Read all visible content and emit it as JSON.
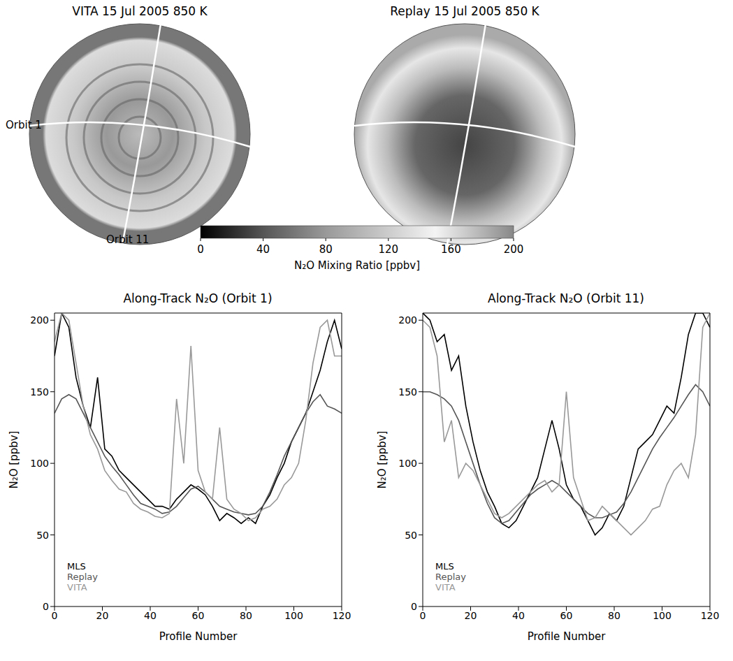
{
  "maps": [
    {
      "title": "VITA 15 Jul 2005 850 K",
      "labels": [
        "Orbit 1",
        "Orbit 11"
      ]
    },
    {
      "title": "Replay 15 Jul 2005 850 K"
    }
  ],
  "colorbar": {
    "label": "N₂O Mixing Ratio [ppbv]",
    "range": [
      0,
      200
    ],
    "ticks": [
      0,
      40,
      80,
      120,
      160,
      200
    ]
  },
  "chart_data": [
    {
      "type": "line",
      "title": "Along-Track N₂O (Orbit 1)",
      "x_label": "Profile Number",
      "y_label": "N₂O [ppbv]",
      "x": [
        0,
        3,
        6,
        9,
        12,
        15,
        18,
        21,
        24,
        27,
        30,
        33,
        36,
        39,
        42,
        45,
        48,
        51,
        54,
        57,
        60,
        63,
        66,
        69,
        72,
        75,
        78,
        81,
        84,
        87,
        90,
        93,
        96,
        99,
        102,
        105,
        108,
        111,
        114,
        117,
        120
      ],
      "xlim": [
        0,
        120
      ],
      "xticks": [
        0,
        20,
        40,
        60,
        80,
        100,
        120
      ],
      "ylim": [
        0,
        205
      ],
      "yticks": [
        0,
        50,
        100,
        150,
        200
      ],
      "legend": "lower left",
      "series": [
        {
          "name": "MLS",
          "color": "#000000",
          "values": [
            175,
            205,
            195,
            160,
            140,
            125,
            160,
            110,
            105,
            95,
            90,
            85,
            80,
            75,
            70,
            70,
            68,
            75,
            80,
            85,
            82,
            78,
            70,
            60,
            65,
            62,
            58,
            62,
            58,
            70,
            78,
            90,
            100,
            115,
            125,
            135,
            150,
            165,
            185,
            200,
            180
          ]
        },
        {
          "name": "Replay",
          "color": "#555555",
          "values": [
            135,
            145,
            148,
            145,
            135,
            125,
            115,
            105,
            98,
            92,
            85,
            78,
            72,
            70,
            68,
            65,
            66,
            70,
            76,
            82,
            84,
            80,
            75,
            70,
            68,
            66,
            65,
            64,
            65,
            70,
            80,
            92,
            105,
            115,
            125,
            135,
            143,
            148,
            140,
            138,
            135
          ]
        },
        {
          "name": "VITA",
          "color": "#999999",
          "values": [
            185,
            205,
            200,
            170,
            140,
            120,
            110,
            95,
            88,
            82,
            80,
            72,
            68,
            66,
            63,
            62,
            65,
            145,
            100,
            182,
            95,
            80,
            75,
            125,
            75,
            68,
            65,
            60,
            62,
            68,
            70,
            75,
            85,
            90,
            100,
            130,
            170,
            195,
            200,
            175,
            175
          ]
        }
      ]
    },
    {
      "type": "line",
      "title": "Along-Track N₂O (Orbit 11)",
      "x_label": "Profile Number",
      "y_label": "N₂O [ppbv]",
      "x": [
        0,
        3,
        6,
        9,
        12,
        15,
        18,
        21,
        24,
        27,
        30,
        33,
        36,
        39,
        42,
        45,
        48,
        51,
        54,
        57,
        60,
        63,
        66,
        69,
        72,
        75,
        78,
        81,
        84,
        87,
        90,
        93,
        96,
        99,
        102,
        105,
        108,
        111,
        114,
        117,
        120
      ],
      "xlim": [
        0,
        120
      ],
      "xticks": [
        0,
        20,
        40,
        60,
        80,
        100,
        120
      ],
      "ylim": [
        0,
        205
      ],
      "yticks": [
        0,
        50,
        100,
        150,
        200
      ],
      "legend": "lower left",
      "series": [
        {
          "name": "MLS",
          "color": "#000000",
          "values": [
            205,
            200,
            185,
            190,
            165,
            175,
            140,
            115,
            95,
            80,
            70,
            58,
            55,
            60,
            70,
            80,
            90,
            110,
            130,
            110,
            85,
            75,
            70,
            60,
            50,
            55,
            65,
            60,
            70,
            90,
            110,
            115,
            120,
            130,
            140,
            135,
            160,
            190,
            205,
            205,
            195
          ]
        },
        {
          "name": "Replay",
          "color": "#555555",
          "values": [
            150,
            150,
            148,
            145,
            140,
            130,
            115,
            100,
            85,
            72,
            62,
            58,
            60,
            66,
            72,
            78,
            82,
            85,
            88,
            85,
            80,
            75,
            70,
            65,
            62,
            62,
            64,
            66,
            72,
            80,
            90,
            100,
            110,
            118,
            125,
            132,
            140,
            148,
            155,
            150,
            140
          ]
        },
        {
          "name": "VITA",
          "color": "#999999",
          "values": [
            200,
            195,
            175,
            115,
            130,
            90,
            100,
            95,
            85,
            75,
            65,
            62,
            65,
            70,
            75,
            80,
            85,
            88,
            80,
            85,
            150,
            90,
            75,
            60,
            62,
            70,
            65,
            60,
            55,
            50,
            55,
            60,
            68,
            70,
            85,
            95,
            100,
            90,
            120,
            195,
            205
          ]
        }
      ]
    }
  ]
}
